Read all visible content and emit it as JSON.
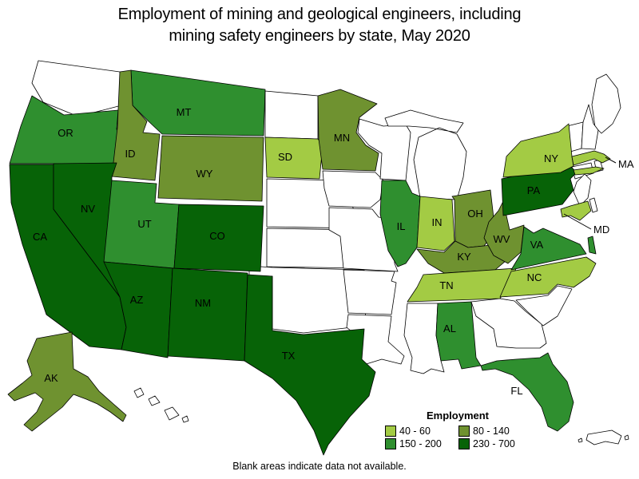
{
  "title": {
    "line1": "Employment of mining and geological engineers, including",
    "line2": "mining safety engineers by state, May 2020"
  },
  "legend": {
    "title": "Employment",
    "classes": [
      {
        "label": "40 - 60",
        "color": "#A3CB44"
      },
      {
        "label": "80 - 140",
        "color": "#6F9230"
      },
      {
        "label": "150 - 200",
        "color": "#2F8F2F"
      },
      {
        "label": "230 - 700",
        "color": "#076307"
      }
    ]
  },
  "note": "Blank areas indicate data not available.",
  "colors": {
    "border": "#000000",
    "no_data": "#FFFFFF",
    "background": "#FFFFFF",
    "label_text": "#000000"
  },
  "map": {
    "states_with_data": [
      {
        "abbr": "OR",
        "range": "150 - 200"
      },
      {
        "abbr": "MT",
        "range": "150 - 200"
      },
      {
        "abbr": "ID",
        "range": "80 - 140"
      },
      {
        "abbr": "WY",
        "range": "80 - 140"
      },
      {
        "abbr": "SD",
        "range": "40 - 60"
      },
      {
        "abbr": "MN",
        "range": "80 - 140"
      },
      {
        "abbr": "CA",
        "range": "230 - 700"
      },
      {
        "abbr": "NV",
        "range": "230 - 700"
      },
      {
        "abbr": "UT",
        "range": "150 - 200"
      },
      {
        "abbr": "CO",
        "range": "230 - 700"
      },
      {
        "abbr": "AZ",
        "range": "230 - 700"
      },
      {
        "abbr": "NM",
        "range": "230 - 700"
      },
      {
        "abbr": "TX",
        "range": "230 - 700"
      },
      {
        "abbr": "AK",
        "range": "80 - 140"
      },
      {
        "abbr": "IL",
        "range": "150 - 200"
      },
      {
        "abbr": "IN",
        "range": "40 - 60"
      },
      {
        "abbr": "OH",
        "range": "80 - 140"
      },
      {
        "abbr": "KY",
        "range": "80 - 140"
      },
      {
        "abbr": "WV",
        "range": "80 - 140"
      },
      {
        "abbr": "TN",
        "range": "40 - 60"
      },
      {
        "abbr": "AL",
        "range": "150 - 200"
      },
      {
        "abbr": "MS_none",
        "range": ""
      },
      {
        "abbr": "FL",
        "range": "150 - 200"
      },
      {
        "abbr": "VA",
        "range": "150 - 200"
      },
      {
        "abbr": "NC",
        "range": "40 - 60"
      },
      {
        "abbr": "MD",
        "range": "40 - 60"
      },
      {
        "abbr": "PA",
        "range": "230 - 700"
      },
      {
        "abbr": "NY",
        "range": "40 - 60"
      },
      {
        "abbr": "MA",
        "range": "40 - 60"
      }
    ],
    "no_data_states": [
      "WA",
      "ND",
      "NE",
      "KS",
      "OK",
      "IA",
      "MO",
      "AR",
      "LA",
      "MS",
      "WI",
      "MI",
      "GA",
      "SC",
      "ME",
      "VT",
      "NH",
      "CT",
      "RI",
      "NJ",
      "DE",
      "HI",
      "PR"
    ]
  }
}
